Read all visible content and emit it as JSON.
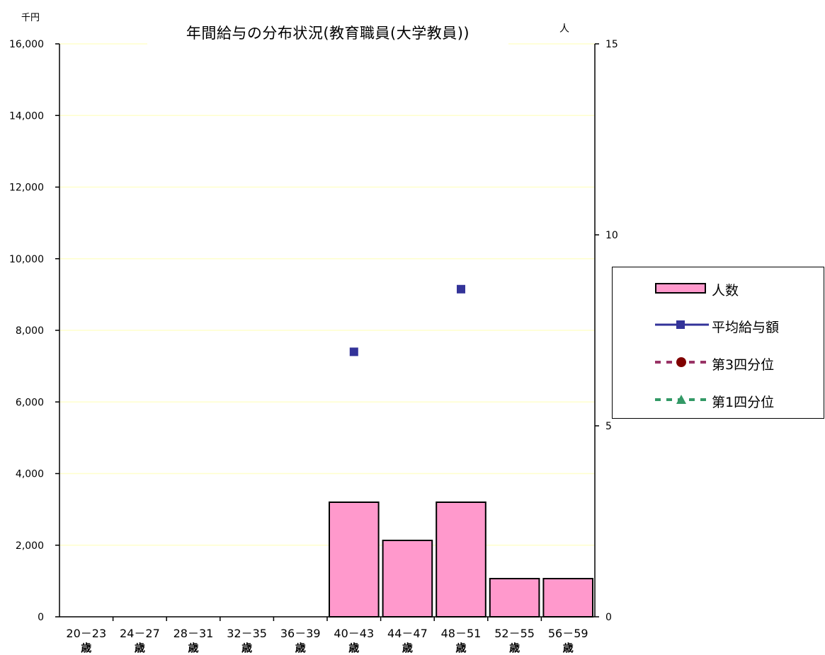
{
  "title": "年間給与の分布状況(教育職員(大学教員))",
  "left_unit": "千円",
  "right_unit": "人",
  "legend": [
    {
      "label": "人数",
      "icon": "pink-bar-swatch"
    },
    {
      "label": "平均給与額",
      "icon": "navy-square-line-marker"
    },
    {
      "label": "第3四分位",
      "icon": "maroon-circle-dashed-marker"
    },
    {
      "label": "第1四分位",
      "icon": "green-triangle-dashed-marker"
    }
  ],
  "colors": {
    "bar_fill": "#ff99cc",
    "mean": "#333399",
    "q3": "#993366",
    "q3_marker": "#800000",
    "q1": "#339966",
    "gridline": "#ffffcc"
  },
  "chart_data": {
    "type": "bar",
    "title": "年間給与の分布状況(教育職員(大学教員))",
    "categories": [
      [
        "20－23",
        "歳"
      ],
      [
        "24－27",
        "歳"
      ],
      [
        "28－31",
        "歳"
      ],
      [
        "32－35",
        "歳"
      ],
      [
        "36－39",
        "歳"
      ],
      [
        "40－43",
        "歳"
      ],
      [
        "44－47",
        "歳"
      ],
      [
        "48－51",
        "歳"
      ],
      [
        "52－55",
        "歳"
      ],
      [
        "56－59",
        "歳"
      ]
    ],
    "series": [
      {
        "name": "人数",
        "type": "bar",
        "axis": "right",
        "values": [
          0,
          0,
          0,
          0,
          0,
          3,
          2,
          3,
          1,
          1
        ]
      },
      {
        "name": "平均給与額",
        "type": "line",
        "axis": "left",
        "values": [
          null,
          null,
          null,
          null,
          null,
          7400,
          null,
          9150,
          null,
          null
        ]
      },
      {
        "name": "第3四分位",
        "type": "line",
        "axis": "left",
        "values": [
          null,
          null,
          null,
          null,
          null,
          null,
          null,
          null,
          null,
          null
        ]
      },
      {
        "name": "第1四分位",
        "type": "line",
        "axis": "left",
        "values": [
          null,
          null,
          null,
          null,
          null,
          null,
          null,
          null,
          null,
          null
        ]
      }
    ],
    "y_left": {
      "label": "千円",
      "ylim": [
        0,
        16000
      ],
      "ticks": [
        0,
        2000,
        4000,
        6000,
        8000,
        10000,
        12000,
        14000,
        16000
      ],
      "tick_labels": [
        "0",
        "2,000",
        "4,000",
        "6,000",
        "8,000",
        "10,000",
        "12,000",
        "14,000",
        "16,000"
      ]
    },
    "y_right": {
      "label": "人",
      "ylim": [
        0,
        15
      ],
      "ticks": [
        0,
        5,
        10,
        15
      ],
      "tick_labels": [
        "0",
        "5",
        "10",
        "15"
      ]
    },
    "grid": true,
    "legend_position": "right"
  }
}
